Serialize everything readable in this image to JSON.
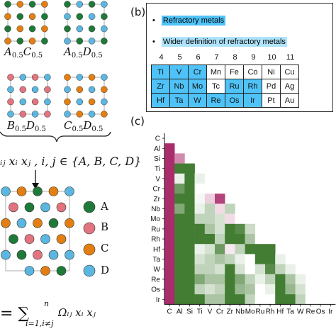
{
  "panel_a": {
    "cells": [
      {
        "label_main": "A",
        "label_sub": "0.5",
        "label_main2": "C",
        "label_sub2": "0.5"
      },
      {
        "label_main": "A",
        "label_sub": "0.5",
        "label_main2": "D",
        "label_sub2": "0.5"
      },
      {
        "label_main": "B",
        "label_sub": "0.5",
        "label_main2": "D",
        "label_sub2": "0.5"
      },
      {
        "label_main": "C",
        "label_sub": "0.5",
        "label_main2": "D",
        "label_sub2": "0.5"
      }
    ],
    "formula_top": "ᵢⱼ xᵢ xⱼ , i, j ∈ {A, B, C, D}",
    "formula_bottom_left": "= ∑",
    "formula_bottom_upper": "n",
    "formula_bottom_lower": "i=1,i≠j",
    "formula_bottom_right": "Ωᵢⱼ xᵢ xⱼ",
    "legend": [
      {
        "label": "A",
        "color": "#1f7a3a"
      },
      {
        "label": "B",
        "color": "#e2747f"
      },
      {
        "label": "C",
        "color": "#e37f12"
      },
      {
        "label": "D",
        "color": "#5bb6e0"
      }
    ]
  },
  "panel_b": {
    "label": "(b)",
    "legend_refractory": "Refractory metals",
    "legend_wider": "Wider definition of refractory metals",
    "groups": [
      "4",
      "5",
      "6",
      "7",
      "8",
      "9",
      "10",
      "11"
    ],
    "rows": [
      [
        {
          "s": "Ti",
          "h": true
        },
        {
          "s": "V",
          "h": true
        },
        {
          "s": "Cr",
          "h": true
        },
        {
          "s": "Mn",
          "h": false
        },
        {
          "s": "Fe",
          "h": false
        },
        {
          "s": "Co",
          "h": false
        },
        {
          "s": "Ni",
          "h": false
        },
        {
          "s": "Cu",
          "h": false
        }
      ],
      [
        {
          "s": "Zr",
          "h": true
        },
        {
          "s": "Nb",
          "h": true
        },
        {
          "s": "Mo",
          "h": true
        },
        {
          "s": "Tc",
          "h": false
        },
        {
          "s": "Ru",
          "h": true
        },
        {
          "s": "Rh",
          "h": true
        },
        {
          "s": "Pd",
          "h": false
        },
        {
          "s": "Ag",
          "h": false
        }
      ],
      [
        {
          "s": "Hf",
          "h": true
        },
        {
          "s": "Ta",
          "h": true
        },
        {
          "s": "W",
          "h": true
        },
        {
          "s": "Re",
          "h": true
        },
        {
          "s": "Os",
          "h": true
        },
        {
          "s": "Ir",
          "h": true
        },
        {
          "s": "Pt",
          "h": false
        },
        {
          "s": "Au",
          "h": false
        }
      ]
    ]
  },
  "panel_c": {
    "label": "(c)",
    "chart_data": {
      "type": "heatmap",
      "elements": [
        "C",
        "Al",
        "Si",
        "Ti",
        "V",
        "Cr",
        "Zr",
        "Nb",
        "Mo",
        "Ru",
        "Rh",
        "Hf",
        "Ta",
        "W",
        "Re",
        "Os",
        "Ir"
      ],
      "scale_note": "values -1 (magenta) to +1 (dark green), lower triangle",
      "values": [
        [],
        [
          -0.9
        ],
        [
          -0.9,
          -0.5
        ],
        [
          -0.9,
          0.9,
          0.9
        ],
        [
          -0.9,
          0.1,
          0.9,
          0.1
        ],
        [
          -0.9,
          0.7,
          0.9,
          0.0,
          0.0
        ],
        [
          -0.9,
          0.9,
          0.9,
          0.05,
          -0.2,
          -0.8
        ],
        [
          -0.9,
          0.6,
          0.9,
          0.1,
          0.3,
          -0.15,
          0.3
        ],
        [
          -0.9,
          0.9,
          0.9,
          0.3,
          0.3,
          0.2,
          -0.15,
          0.0
        ],
        [
          -0.9,
          0.9,
          0.9,
          0.9,
          0.4,
          0.2,
          0.9,
          0.8,
          0.25
        ],
        [
          -0.9,
          0.9,
          0.9,
          0.9,
          0.9,
          0.3,
          0.9,
          0.9,
          0.4,
          0.0
        ],
        [
          -0.9,
          0.9,
          0.9,
          0.1,
          0.2,
          0.7,
          -0.1,
          0.3,
          0.9,
          0.9,
          0.9
        ],
        [
          -0.9,
          0.9,
          0.9,
          0.2,
          0.3,
          0.4,
          0.3,
          0.1,
          0.0,
          0.9,
          0.9,
          0.1
        ],
        [
          -0.9,
          0.9,
          0.9,
          0.3,
          0.3,
          0.2,
          0.9,
          0.2,
          0.0,
          0.2,
          0.8,
          0.3,
          0.1
        ],
        [
          -0.9,
          0.9,
          0.9,
          0.6,
          0.4,
          0.4,
          0.9,
          0.6,
          0.3,
          0.1,
          0.3,
          0.9,
          0.4,
          0.1
        ],
        [
          -0.9,
          0.9,
          0.9,
          0.3,
          0.2,
          0.3,
          0.9,
          0.5,
          0.4,
          0.0,
          0.1,
          0.9,
          0.5,
          0.2,
          0.0
        ],
        [
          -0.9,
          0.9,
          0.9,
          0.9,
          0.4,
          0.4,
          0.9,
          0.9,
          0.3,
          0.0,
          0.0,
          0.9,
          0.9,
          0.3,
          0.0,
          0.0
        ]
      ]
    }
  }
}
